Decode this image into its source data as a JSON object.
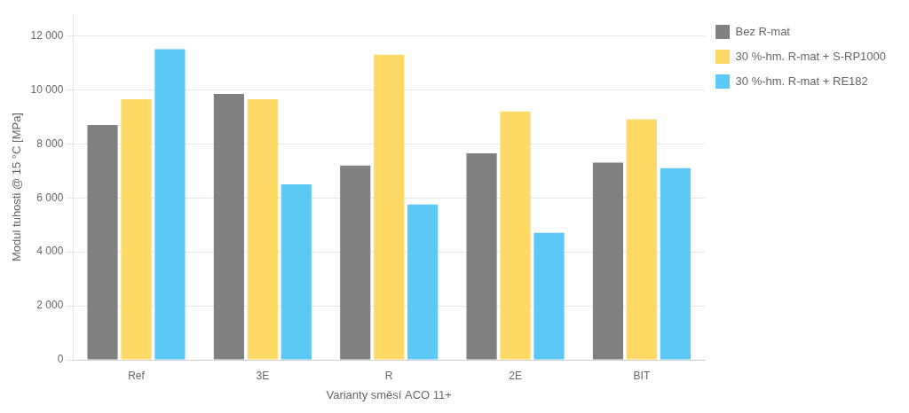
{
  "chart_data": {
    "type": "bar",
    "categories": [
      "Ref",
      "3E",
      "R",
      "2E",
      "BIT"
    ],
    "series": [
      {
        "name": "Bez R-mat",
        "color": "#808080",
        "values": [
          8700,
          9850,
          7200,
          7650,
          7300
        ]
      },
      {
        "name": "30 %-hm. R-mat + S-RP1000",
        "color": "#FFD966",
        "values": [
          9650,
          9650,
          11300,
          9200,
          8900
        ]
      },
      {
        "name": "30 %-hm. R-mat + RE182",
        "color": "#5BC8F5",
        "values": [
          11500,
          6500,
          5750,
          4700,
          7100
        ]
      }
    ],
    "xlabel": "Varianty směsí ACO 11+",
    "ylabel": "Modul tuhosti @ 15 °C [MPa]",
    "ylim": [
      0,
      12800
    ],
    "yticks": [
      0,
      {
        "value": 2000,
        "label": "2 000"
      },
      {
        "value": 4000,
        "label": "4 000"
      },
      {
        "value": 6000,
        "label": "6 000"
      },
      {
        "value": 8000,
        "label": "8 000"
      },
      {
        "value": 10000,
        "label": "10 000"
      },
      {
        "value": 12000,
        "label": "12 000"
      }
    ],
    "grid": true,
    "legend": "right"
  }
}
